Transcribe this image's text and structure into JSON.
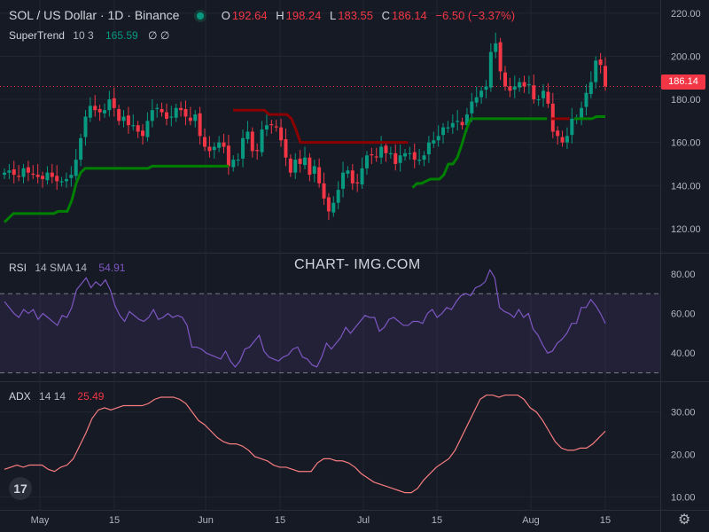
{
  "header": {
    "symbol": "SOL / US Dollar · 1D · Binance",
    "ohlc": {
      "o_label": "O",
      "o": "192.64",
      "h_label": "H",
      "h": "198.24",
      "l_label": "L",
      "l": "183.55",
      "c_label": "C",
      "c": "186.14",
      "change": "−6.50 (−3.37%)"
    }
  },
  "supertrend": {
    "name": "SuperTrend",
    "params": "10 3",
    "value": "165.59",
    "icons": "∅  ∅"
  },
  "rsi": {
    "name": "RSI",
    "params": "14 SMA 14",
    "value": "54.91"
  },
  "adx": {
    "name": "ADX",
    "params": "14 14",
    "value": "25.49"
  },
  "watermark": "CHART- IMG.COM",
  "price_badge": "186.14",
  "logo_text": "17",
  "colors": {
    "up": "#089981",
    "down": "#f23645",
    "st_up": "#008000",
    "st_down": "#8b0000",
    "rsi": "#7e57c2",
    "adx": "#f77c80"
  },
  "chart_data": [
    {
      "type": "candlestick",
      "title": "SOL / US Dollar · 1D · Binance",
      "y_ticks": [
        "220.00",
        "200.00",
        "180.00",
        "160.00",
        "140.00",
        "120.00"
      ],
      "x_ticks": [
        "May",
        "15",
        "Jun",
        "15",
        "Jul",
        "15",
        "Aug",
        "15"
      ],
      "ylim": [
        115,
        222
      ],
      "candles_close": [
        146,
        147,
        145,
        144,
        148,
        146,
        145,
        144,
        143,
        146,
        144,
        142,
        142,
        143,
        145,
        152,
        162,
        172,
        177,
        175,
        174,
        175,
        180,
        176,
        170,
        172,
        168,
        168,
        165,
        163,
        170,
        175,
        176,
        174,
        171,
        172,
        176,
        175,
        172,
        170,
        173,
        163,
        158,
        156,
        158,
        160,
        158,
        149,
        152,
        152,
        162,
        165,
        156,
        156,
        166,
        168,
        168,
        167,
        161,
        153,
        146,
        152,
        150,
        153,
        145,
        149,
        141,
        134,
        128,
        132,
        138,
        146,
        147,
        141,
        141,
        148,
        154,
        154,
        153,
        158,
        155,
        155,
        150,
        154,
        155,
        155,
        152,
        152,
        154,
        160,
        161,
        163,
        167,
        167,
        169,
        170,
        168,
        173,
        179,
        181,
        184,
        186,
        202,
        206,
        193,
        186,
        184,
        186,
        188,
        186,
        187,
        180,
        180,
        184,
        178,
        165,
        163,
        160,
        163,
        171,
        171,
        176,
        183,
        188,
        198,
        196,
        186
      ],
      "supertrend_values": [
        123,
        125,
        127,
        127,
        127,
        127,
        127,
        127,
        127,
        127,
        127,
        127,
        128,
        128,
        128,
        133,
        141,
        146,
        148,
        148,
        148,
        148,
        148,
        148,
        148,
        148,
        148,
        148,
        148,
        148,
        148,
        148,
        148,
        149,
        149,
        149,
        149,
        149,
        149,
        149,
        149,
        149,
        149,
        149,
        149,
        149,
        149,
        149,
        149,
        149,
        149,
        175,
        175,
        175,
        175,
        175,
        175,
        175,
        175,
        173,
        173,
        173,
        173,
        173,
        171,
        166,
        160,
        160,
        160,
        160,
        160,
        160,
        160,
        160,
        160,
        160,
        160,
        160,
        160,
        160,
        160,
        160,
        160,
        160,
        160,
        160,
        160,
        160,
        160,
        160,
        160,
        139,
        141,
        141,
        142,
        143,
        143,
        143,
        145,
        150,
        150,
        153,
        159,
        166,
        171,
        171,
        171,
        171,
        171,
        171,
        171,
        171,
        171,
        171,
        171,
        171,
        171,
        171,
        171,
        171,
        171,
        171,
        171,
        171,
        171,
        171,
        171,
        171,
        171,
        171,
        171,
        171,
        172,
        172,
        172
      ],
      "last_value": 165.59
    },
    {
      "type": "line",
      "title": "RSI 14 SMA 14",
      "y_ticks": [
        "80.00",
        "60.00",
        "40.00"
      ],
      "ylim": [
        28,
        88
      ],
      "band": [
        30,
        70
      ],
      "values": [
        66,
        63,
        60,
        58,
        62,
        60,
        62,
        57,
        60,
        58,
        56,
        54,
        59,
        58,
        63,
        72,
        75,
        78,
        73,
        76,
        74,
        77,
        72,
        64,
        59,
        56,
        61,
        59,
        57,
        56,
        58,
        62,
        57,
        58,
        60,
        58,
        59,
        58,
        54,
        43,
        43,
        42,
        40,
        39,
        38,
        37,
        41,
        36,
        33,
        36,
        42,
        43,
        46,
        49,
        41,
        38,
        37,
        36,
        38,
        39,
        42,
        43,
        38,
        37,
        34,
        33,
        38,
        45,
        42,
        45,
        48,
        53,
        50,
        53,
        56,
        59,
        58,
        58,
        51,
        53,
        57,
        58,
        56,
        54,
        54,
        56,
        56,
        55,
        60,
        62,
        58,
        60,
        63,
        62,
        66,
        69,
        70,
        69,
        73,
        74,
        76,
        82,
        78,
        63,
        61,
        60,
        58,
        62,
        58,
        60,
        52,
        49,
        44,
        40,
        41,
        45,
        47,
        50,
        55,
        55,
        63,
        63,
        67,
        64,
        60,
        55
      ],
      "last_value": 54.91
    },
    {
      "type": "line",
      "title": "ADX 14 14",
      "y_ticks": [
        "30.00",
        "20.00",
        "10.00"
      ],
      "ylim": [
        8,
        36
      ],
      "values": [
        16.5,
        17,
        17.5,
        17,
        17.5,
        17.5,
        17.5,
        16.5,
        16,
        17,
        17.5,
        19,
        22,
        25,
        28.5,
        30.5,
        31,
        30.5,
        31,
        31.5,
        31.5,
        31.5,
        31.5,
        32,
        33,
        33.5,
        33.5,
        33.5,
        33,
        32,
        30,
        28,
        27,
        25.5,
        24,
        23,
        22.5,
        22.5,
        22,
        21,
        19.5,
        19,
        18.5,
        17.5,
        17,
        17,
        16.5,
        16,
        16,
        16,
        18,
        19,
        19,
        18.5,
        18.5,
        18,
        17,
        15.5,
        14.5,
        13.5,
        13,
        12.5,
        12,
        11.5,
        11,
        11,
        12,
        14,
        15.5,
        17,
        18,
        19,
        21,
        24,
        27,
        30,
        33,
        34,
        34,
        33.5,
        34,
        34,
        34,
        33,
        31,
        30,
        28,
        25.5,
        23,
        21.5,
        21,
        21,
        21.5,
        21.5,
        22.5,
        24,
        25.5
      ],
      "last_value": 25.49
    }
  ]
}
